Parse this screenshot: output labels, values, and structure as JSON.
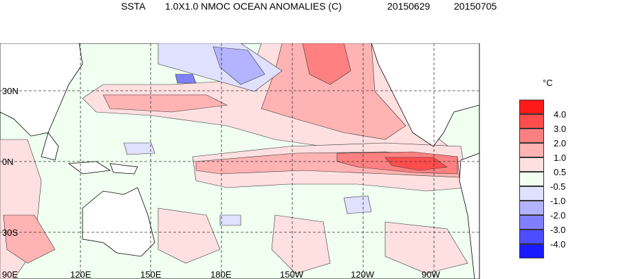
{
  "header": {
    "variable": "SSTA",
    "description": "1.0X1.0 NMOC OCEAN ANOMALIES (C)",
    "start_date": "20150629",
    "end_date": "20150705"
  },
  "map": {
    "lon_labels": [
      "90E",
      "120E",
      "150E",
      "180E",
      "150W",
      "120W",
      "90W"
    ],
    "lat_labels": [
      "30N",
      "0N",
      "30S"
    ],
    "grid": "dashed",
    "land_color": "#ffffff"
  },
  "legend": {
    "unit": "°C",
    "levels": [
      "4.0",
      "3.0",
      "2.0",
      "1.0",
      "0.5",
      "-0.5",
      "-1.0",
      "-2.0",
      "-3.0",
      "-4.0"
    ],
    "colors": [
      "#ff1a1a",
      "#ff4d4d",
      "#ff8080",
      "#ffb3b3",
      "#ffe0e0",
      "#f0fff0",
      "#e0e0ff",
      "#b3b3ff",
      "#8080ff",
      "#4d4dff",
      "#1a1aff"
    ]
  }
}
